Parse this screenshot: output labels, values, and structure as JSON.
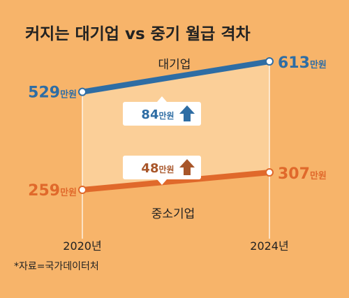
{
  "chart_data": {
    "type": "line",
    "title": "커지는 대기업 vs 중기 월급 격차",
    "x": [
      "2020년",
      "2024년"
    ],
    "unit": "만원",
    "series": [
      {
        "name": "대기업",
        "values": [
          529,
          613
        ],
        "color": "#2E6DA4"
      },
      {
        "name": "중소기업",
        "values": [
          259,
          307
        ],
        "color": "#E0692B"
      }
    ],
    "differences": [
      {
        "value": 84,
        "unit": "만원",
        "direction": "up",
        "color": "#2E6DA4"
      },
      {
        "value": 48,
        "unit": "만원",
        "direction": "up",
        "color": "#A8562A"
      }
    ],
    "ylim": [
      200,
      650
    ],
    "grid": false,
    "source": "*자료=국가데이터처",
    "colors": {
      "background": "#F7B46A",
      "band": "#FBCF98"
    }
  }
}
